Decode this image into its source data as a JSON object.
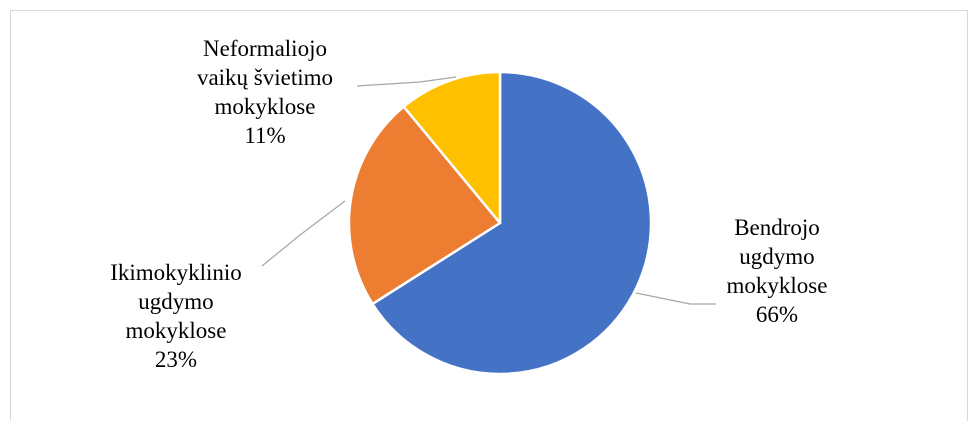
{
  "chart_data": {
    "type": "pie",
    "title": "",
    "categories": [
      "Bendrojo ugdymo mokyklose",
      "Ikimokyklinio ugdymo mokyklose",
      "Neformaliojo vaikų švietimo mokyklose"
    ],
    "values": [
      66,
      23,
      11
    ],
    "colors": [
      "#4472c4",
      "#ed7d31",
      "#ffc000"
    ],
    "slice_border_color": "#ffffff",
    "leader_line_color": "#a6a6a6",
    "frame_border_color": "#d9d9d9",
    "legend": "none",
    "data_labels": [
      {
        "line1": "Bendrojo",
        "line2": "ugdymo",
        "line3": "mokyklose",
        "percent": "66%"
      },
      {
        "line1": "Ikimokyklinio",
        "line2": "ugdymo",
        "line3": "mokyklose",
        "percent": "23%"
      },
      {
        "line1": "Neformaliojo",
        "line2": "vaikų švietimo",
        "line3": "mokyklose",
        "percent": "11%"
      }
    ]
  }
}
